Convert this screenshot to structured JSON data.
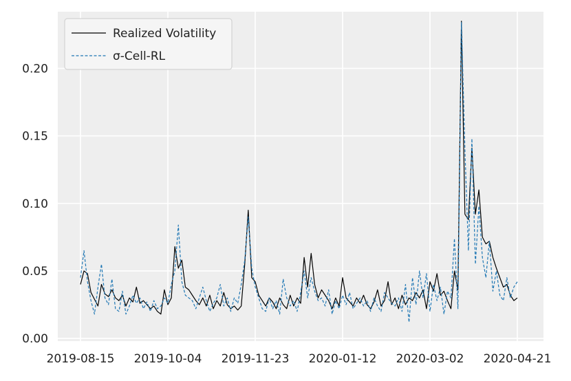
{
  "chart_data": {
    "type": "line",
    "title": "",
    "xlabel": "",
    "ylabel": "",
    "x_start": "2019-08-15",
    "x_end": "2020-04-21",
    "x_ticks": [
      "2019-08-15",
      "2019-10-04",
      "2019-11-23",
      "2020-01-12",
      "2020-03-02",
      "2020-04-21"
    ],
    "ylim": [
      -0.002,
      0.242
    ],
    "y_ticks": [
      0.0,
      0.05,
      0.1,
      0.15,
      0.2
    ],
    "y_tick_labels": [
      "0.00",
      "0.05",
      "0.10",
      "0.15",
      "0.20"
    ],
    "grid": true,
    "legend_position": "top-left",
    "series": [
      {
        "name": "Realized Volatility",
        "color": "#000000",
        "style": "solid",
        "points": [
          [
            "2019-08-15",
            0.04
          ],
          [
            "2019-08-17",
            0.05
          ],
          [
            "2019-08-19",
            0.048
          ],
          [
            "2019-08-21",
            0.034
          ],
          [
            "2019-08-23",
            0.029
          ],
          [
            "2019-08-25",
            0.024
          ],
          [
            "2019-08-27",
            0.04
          ],
          [
            "2019-08-29",
            0.033
          ],
          [
            "2019-08-31",
            0.031
          ],
          [
            "2019-09-02",
            0.036
          ],
          [
            "2019-09-04",
            0.03
          ],
          [
            "2019-09-06",
            0.028
          ],
          [
            "2019-09-08",
            0.032
          ],
          [
            "2019-09-10",
            0.024
          ],
          [
            "2019-09-12",
            0.03
          ],
          [
            "2019-09-14",
            0.027
          ],
          [
            "2019-09-16",
            0.038
          ],
          [
            "2019-09-18",
            0.026
          ],
          [
            "2019-09-20",
            0.028
          ],
          [
            "2019-09-22",
            0.025
          ],
          [
            "2019-09-24",
            0.022
          ],
          [
            "2019-09-26",
            0.024
          ],
          [
            "2019-09-28",
            0.02
          ],
          [
            "2019-09-30",
            0.018
          ],
          [
            "2019-10-02",
            0.036
          ],
          [
            "2019-10-04",
            0.025
          ],
          [
            "2019-10-06",
            0.03
          ],
          [
            "2019-10-08",
            0.068
          ],
          [
            "2019-10-10",
            0.052
          ],
          [
            "2019-10-12",
            0.058
          ],
          [
            "2019-10-14",
            0.038
          ],
          [
            "2019-10-16",
            0.036
          ],
          [
            "2019-10-18",
            0.032
          ],
          [
            "2019-10-20",
            0.028
          ],
          [
            "2019-10-22",
            0.025
          ],
          [
            "2019-10-24",
            0.03
          ],
          [
            "2019-10-26",
            0.024
          ],
          [
            "2019-10-28",
            0.032
          ],
          [
            "2019-10-30",
            0.022
          ],
          [
            "2019-11-01",
            0.028
          ],
          [
            "2019-11-03",
            0.024
          ],
          [
            "2019-11-05",
            0.034
          ],
          [
            "2019-11-07",
            0.025
          ],
          [
            "2019-11-09",
            0.022
          ],
          [
            "2019-11-11",
            0.024
          ],
          [
            "2019-11-13",
            0.021
          ],
          [
            "2019-11-15",
            0.024
          ],
          [
            "2019-11-17",
            0.055
          ],
          [
            "2019-11-19",
            0.095
          ],
          [
            "2019-11-21",
            0.045
          ],
          [
            "2019-11-23",
            0.042
          ],
          [
            "2019-11-25",
            0.032
          ],
          [
            "2019-11-27",
            0.028
          ],
          [
            "2019-11-29",
            0.024
          ],
          [
            "2019-12-01",
            0.03
          ],
          [
            "2019-12-03",
            0.027
          ],
          [
            "2019-12-05",
            0.022
          ],
          [
            "2019-12-07",
            0.03
          ],
          [
            "2019-12-09",
            0.025
          ],
          [
            "2019-12-11",
            0.022
          ],
          [
            "2019-12-13",
            0.032
          ],
          [
            "2019-12-15",
            0.024
          ],
          [
            "2019-12-17",
            0.03
          ],
          [
            "2019-12-19",
            0.026
          ],
          [
            "2019-12-21",
            0.06
          ],
          [
            "2019-12-23",
            0.038
          ],
          [
            "2019-12-25",
            0.063
          ],
          [
            "2019-12-27",
            0.04
          ],
          [
            "2019-12-29",
            0.03
          ],
          [
            "2019-12-31",
            0.036
          ],
          [
            "2020-01-02",
            0.032
          ],
          [
            "2020-01-04",
            0.028
          ],
          [
            "2020-01-06",
            0.022
          ],
          [
            "2020-01-08",
            0.03
          ],
          [
            "2020-01-10",
            0.024
          ],
          [
            "2020-01-12",
            0.045
          ],
          [
            "2020-01-14",
            0.03
          ],
          [
            "2020-01-16",
            0.027
          ],
          [
            "2020-01-18",
            0.024
          ],
          [
            "2020-01-20",
            0.03
          ],
          [
            "2020-01-22",
            0.026
          ],
          [
            "2020-01-24",
            0.032
          ],
          [
            "2020-01-26",
            0.025
          ],
          [
            "2020-01-28",
            0.022
          ],
          [
            "2020-01-30",
            0.027
          ],
          [
            "2020-02-01",
            0.036
          ],
          [
            "2020-02-03",
            0.024
          ],
          [
            "2020-02-05",
            0.028
          ],
          [
            "2020-02-07",
            0.042
          ],
          [
            "2020-02-09",
            0.025
          ],
          [
            "2020-02-11",
            0.03
          ],
          [
            "2020-02-13",
            0.022
          ],
          [
            "2020-02-15",
            0.032
          ],
          [
            "2020-02-17",
            0.025
          ],
          [
            "2020-02-19",
            0.03
          ],
          [
            "2020-02-21",
            0.028
          ],
          [
            "2020-02-23",
            0.034
          ],
          [
            "2020-02-25",
            0.03
          ],
          [
            "2020-02-27",
            0.036
          ],
          [
            "2020-02-29",
            0.022
          ],
          [
            "2020-03-02",
            0.042
          ],
          [
            "2020-03-04",
            0.035
          ],
          [
            "2020-03-06",
            0.048
          ],
          [
            "2020-03-08",
            0.032
          ],
          [
            "2020-03-10",
            0.035
          ],
          [
            "2020-03-12",
            0.028
          ],
          [
            "2020-03-14",
            0.022
          ],
          [
            "2020-03-16",
            0.05
          ],
          [
            "2020-03-18",
            0.036
          ],
          [
            "2020-03-20",
            0.235
          ],
          [
            "2020-03-22",
            0.092
          ],
          [
            "2020-03-24",
            0.088
          ],
          [
            "2020-03-26",
            0.141
          ],
          [
            "2020-03-28",
            0.092
          ],
          [
            "2020-03-30",
            0.11
          ],
          [
            "2020-04-01",
            0.075
          ],
          [
            "2020-04-03",
            0.07
          ],
          [
            "2020-04-05",
            0.072
          ],
          [
            "2020-04-07",
            0.06
          ],
          [
            "2020-04-09",
            0.052
          ],
          [
            "2020-04-11",
            0.045
          ],
          [
            "2020-04-13",
            0.038
          ],
          [
            "2020-04-15",
            0.04
          ],
          [
            "2020-04-17",
            0.032
          ],
          [
            "2020-04-19",
            0.028
          ],
          [
            "2020-04-21",
            0.03
          ]
        ]
      },
      {
        "name": "σ-Cell-RL",
        "color": "#1f77b4",
        "style": "dashed",
        "points": [
          [
            "2019-08-15",
            0.045
          ],
          [
            "2019-08-17",
            0.065
          ],
          [
            "2019-08-19",
            0.042
          ],
          [
            "2019-08-21",
            0.028
          ],
          [
            "2019-08-23",
            0.018
          ],
          [
            "2019-08-25",
            0.038
          ],
          [
            "2019-08-27",
            0.055
          ],
          [
            "2019-08-29",
            0.03
          ],
          [
            "2019-08-31",
            0.025
          ],
          [
            "2019-09-02",
            0.044
          ],
          [
            "2019-09-04",
            0.022
          ],
          [
            "2019-09-06",
            0.02
          ],
          [
            "2019-09-08",
            0.035
          ],
          [
            "2019-09-10",
            0.018
          ],
          [
            "2019-09-12",
            0.024
          ],
          [
            "2019-09-14",
            0.032
          ],
          [
            "2019-09-16",
            0.026
          ],
          [
            "2019-09-18",
            0.03
          ],
          [
            "2019-09-20",
            0.022
          ],
          [
            "2019-09-22",
            0.027
          ],
          [
            "2019-09-24",
            0.02
          ],
          [
            "2019-09-26",
            0.028
          ],
          [
            "2019-09-28",
            0.022
          ],
          [
            "2019-09-30",
            0.024
          ],
          [
            "2019-10-02",
            0.03
          ],
          [
            "2019-10-04",
            0.026
          ],
          [
            "2019-10-06",
            0.04
          ],
          [
            "2019-10-08",
            0.05
          ],
          [
            "2019-10-10",
            0.084
          ],
          [
            "2019-10-12",
            0.042
          ],
          [
            "2019-10-14",
            0.032
          ],
          [
            "2019-10-16",
            0.03
          ],
          [
            "2019-10-18",
            0.028
          ],
          [
            "2019-10-20",
            0.022
          ],
          [
            "2019-10-22",
            0.03
          ],
          [
            "2019-10-24",
            0.038
          ],
          [
            "2019-10-26",
            0.028
          ],
          [
            "2019-10-28",
            0.02
          ],
          [
            "2019-10-30",
            0.026
          ],
          [
            "2019-11-01",
            0.03
          ],
          [
            "2019-11-03",
            0.04
          ],
          [
            "2019-11-05",
            0.024
          ],
          [
            "2019-11-07",
            0.03
          ],
          [
            "2019-11-09",
            0.02
          ],
          [
            "2019-11-11",
            0.03
          ],
          [
            "2019-11-13",
            0.026
          ],
          [
            "2019-11-15",
            0.04
          ],
          [
            "2019-11-17",
            0.058
          ],
          [
            "2019-11-19",
            0.09
          ],
          [
            "2019-11-21",
            0.052
          ],
          [
            "2019-11-23",
            0.038
          ],
          [
            "2019-11-25",
            0.03
          ],
          [
            "2019-11-27",
            0.022
          ],
          [
            "2019-11-29",
            0.02
          ],
          [
            "2019-12-01",
            0.03
          ],
          [
            "2019-12-03",
            0.022
          ],
          [
            "2019-12-05",
            0.028
          ],
          [
            "2019-12-07",
            0.018
          ],
          [
            "2019-12-09",
            0.044
          ],
          [
            "2019-12-11",
            0.03
          ],
          [
            "2019-12-13",
            0.024
          ],
          [
            "2019-12-15",
            0.028
          ],
          [
            "2019-12-17",
            0.02
          ],
          [
            "2019-12-19",
            0.034
          ],
          [
            "2019-12-21",
            0.05
          ],
          [
            "2019-12-23",
            0.03
          ],
          [
            "2019-12-25",
            0.045
          ],
          [
            "2019-12-27",
            0.035
          ],
          [
            "2019-12-29",
            0.028
          ],
          [
            "2019-12-31",
            0.03
          ],
          [
            "2020-01-02",
            0.024
          ],
          [
            "2020-01-04",
            0.036
          ],
          [
            "2020-01-06",
            0.018
          ],
          [
            "2020-01-08",
            0.028
          ],
          [
            "2020-01-10",
            0.022
          ],
          [
            "2020-01-12",
            0.032
          ],
          [
            "2020-01-14",
            0.025
          ],
          [
            "2020-01-16",
            0.034
          ],
          [
            "2020-01-18",
            0.022
          ],
          [
            "2020-01-20",
            0.026
          ],
          [
            "2020-01-22",
            0.03
          ],
          [
            "2020-01-24",
            0.024
          ],
          [
            "2020-01-26",
            0.028
          ],
          [
            "2020-01-28",
            0.02
          ],
          [
            "2020-01-30",
            0.03
          ],
          [
            "2020-02-01",
            0.024
          ],
          [
            "2020-02-03",
            0.02
          ],
          [
            "2020-02-05",
            0.034
          ],
          [
            "2020-02-07",
            0.03
          ],
          [
            "2020-02-09",
            0.026
          ],
          [
            "2020-02-11",
            0.024
          ],
          [
            "2020-02-13",
            0.03
          ],
          [
            "2020-02-15",
            0.02
          ],
          [
            "2020-02-17",
            0.04
          ],
          [
            "2020-02-19",
            0.012
          ],
          [
            "2020-02-21",
            0.045
          ],
          [
            "2020-02-23",
            0.025
          ],
          [
            "2020-02-25",
            0.05
          ],
          [
            "2020-02-27",
            0.03
          ],
          [
            "2020-02-29",
            0.048
          ],
          [
            "2020-03-02",
            0.02
          ],
          [
            "2020-03-04",
            0.04
          ],
          [
            "2020-03-06",
            0.028
          ],
          [
            "2020-03-08",
            0.038
          ],
          [
            "2020-03-10",
            0.018
          ],
          [
            "2020-03-12",
            0.035
          ],
          [
            "2020-03-14",
            0.03
          ],
          [
            "2020-03-16",
            0.074
          ],
          [
            "2020-03-18",
            0.022
          ],
          [
            "2020-03-20",
            0.234
          ],
          [
            "2020-03-22",
            0.14
          ],
          [
            "2020-03-24",
            0.065
          ],
          [
            "2020-03-26",
            0.148
          ],
          [
            "2020-03-28",
            0.055
          ],
          [
            "2020-03-30",
            0.098
          ],
          [
            "2020-04-01",
            0.06
          ],
          [
            "2020-04-03",
            0.045
          ],
          [
            "2020-04-05",
            0.072
          ],
          [
            "2020-04-07",
            0.035
          ],
          [
            "2020-04-09",
            0.05
          ],
          [
            "2020-04-11",
            0.032
          ],
          [
            "2020-04-13",
            0.028
          ],
          [
            "2020-04-15",
            0.045
          ],
          [
            "2020-04-17",
            0.03
          ],
          [
            "2020-04-19",
            0.038
          ],
          [
            "2020-04-21",
            0.042
          ]
        ]
      }
    ]
  }
}
